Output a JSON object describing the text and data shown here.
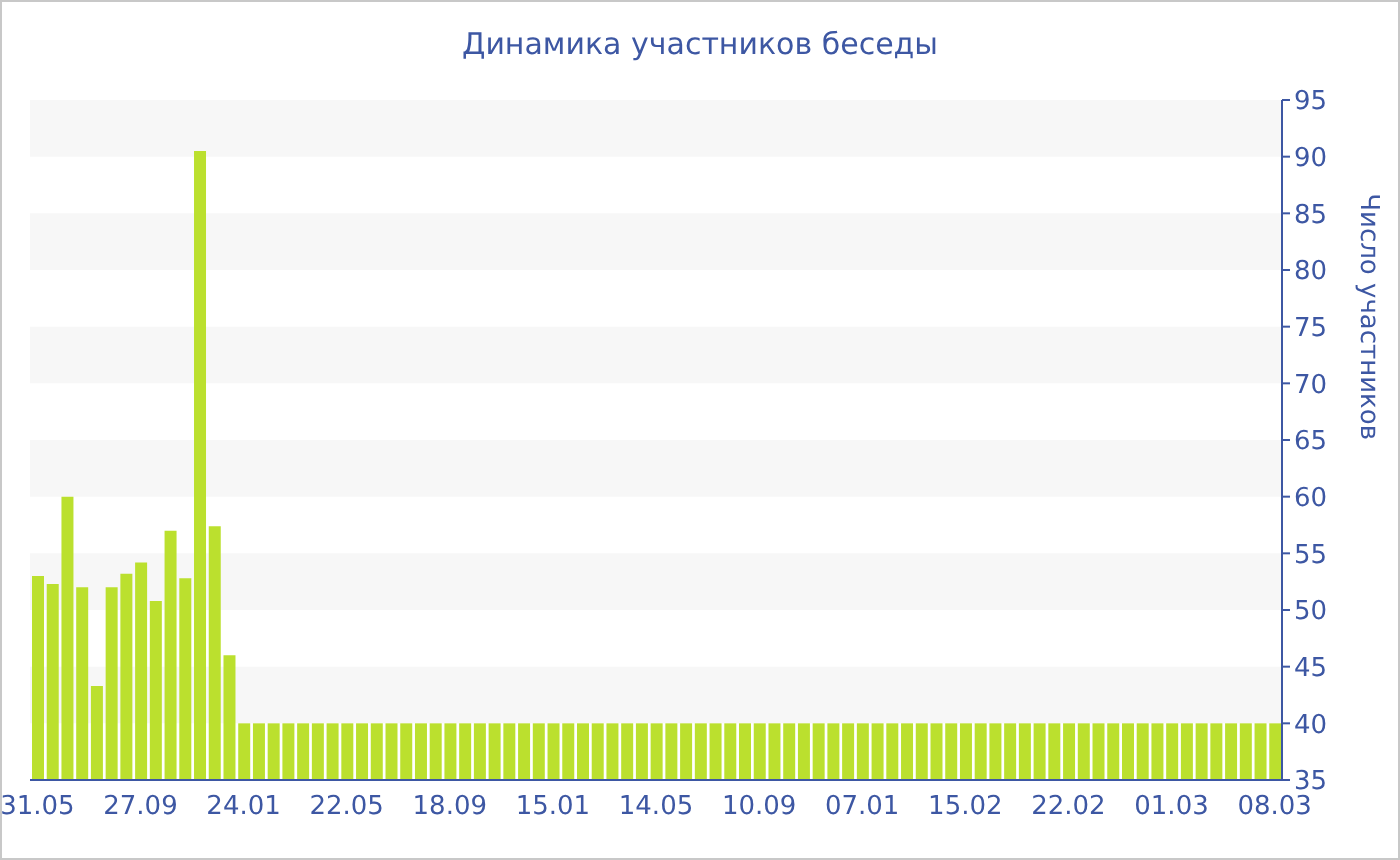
{
  "chart_data": {
    "type": "bar",
    "title": "Динамика участников беседы",
    "ylabel": "Число участников",
    "categories": [
      "31.05",
      null,
      null,
      null,
      null,
      null,
      null,
      "27.09",
      null,
      null,
      null,
      null,
      null,
      null,
      "24.01",
      null,
      null,
      null,
      null,
      null,
      null,
      "22.05",
      null,
      null,
      null,
      null,
      null,
      null,
      "18.09",
      null,
      null,
      null,
      null,
      null,
      null,
      "15.01",
      null,
      null,
      null,
      null,
      null,
      null,
      "14.05",
      null,
      null,
      null,
      null,
      null,
      null,
      "10.09",
      null,
      null,
      null,
      null,
      null,
      null,
      "07.01",
      null,
      null,
      null,
      null,
      null,
      null,
      "15.02",
      null,
      null,
      null,
      null,
      null,
      null,
      "22.02",
      null,
      null,
      null,
      null,
      null,
      null,
      "01.03",
      null,
      null,
      null,
      null,
      null,
      null,
      "08.03"
    ],
    "values": [
      53,
      52.3,
      60,
      52,
      43.3,
      52,
      53.2,
      54.2,
      50.8,
      57,
      52.8,
      90.5,
      57.4,
      46,
      40,
      40,
      40,
      40,
      40,
      40,
      40,
      40,
      40,
      40,
      40,
      40,
      40,
      40,
      40,
      40,
      40,
      40,
      40,
      40,
      40,
      40,
      40,
      40,
      40,
      40,
      40,
      40,
      40,
      40,
      40,
      40,
      40,
      40,
      40,
      40,
      40,
      40,
      40,
      40,
      40,
      40,
      40,
      40,
      40,
      40,
      40,
      40,
      40,
      40,
      40,
      40,
      40,
      40,
      40,
      40,
      40,
      40,
      40,
      40,
      40,
      40,
      40,
      40,
      40,
      40,
      40,
      40,
      40,
      40,
      40
    ],
    "color": "#bbe02e",
    "ylim": [
      35,
      95
    ],
    "yticks": [
      35,
      40,
      45,
      50,
      55,
      60,
      65,
      70,
      75,
      80,
      85,
      90,
      95
    ],
    "legend": false,
    "bands": [
      {
        "axis": "y",
        "from": 40,
        "to": 45,
        "color": "#f7f7f7"
      },
      {
        "axis": "y",
        "from": 50,
        "to": 55,
        "color": "#f7f7f7"
      },
      {
        "axis": "y",
        "from": 60,
        "to": 65,
        "color": "#f7f7f7"
      },
      {
        "axis": "y",
        "from": 70,
        "to": 75,
        "color": "#f7f7f7"
      },
      {
        "axis": "y",
        "from": 80,
        "to": 85,
        "color": "#f7f7f7"
      },
      {
        "axis": "y",
        "from": 90,
        "to": 95,
        "color": "#f7f7f7"
      }
    ]
  }
}
